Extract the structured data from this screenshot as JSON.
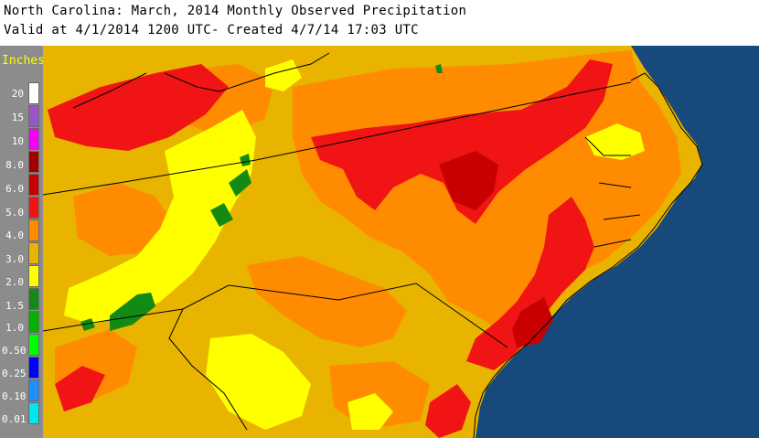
{
  "header": {
    "title_line1": "North Carolina: March, 2014 Monthly Observed Precipitation",
    "title_line2": "Valid at 4/1/2014 1200 UTC- Created 4/7/14 17:03 UTC"
  },
  "legend": {
    "title": "Inches",
    "items": [
      {
        "label": "20",
        "color": "#ffffff"
      },
      {
        "label": "15",
        "color": "#9955c9"
      },
      {
        "label": "10",
        "color": "#f700f7"
      },
      {
        "label": "8.0",
        "color": "#a00000"
      },
      {
        "label": "6.0",
        "color": "#c80000"
      },
      {
        "label": "5.0",
        "color": "#f01414"
      },
      {
        "label": "4.0",
        "color": "#ff8c00"
      },
      {
        "label": "3.0",
        "color": "#e8b400"
      },
      {
        "label": "2.0",
        "color": "#ffff00"
      },
      {
        "label": "1.5",
        "color": "#138a13"
      },
      {
        "label": "1.0",
        "color": "#00b400"
      },
      {
        "label": "0.50",
        "color": "#00ff00"
      },
      {
        "label": "0.25",
        "color": "#0000ff"
      },
      {
        "label": "0.10",
        "color": "#1e90ff"
      },
      {
        "label": "0.01",
        "color": "#00e5ee"
      }
    ]
  },
  "map": {
    "ocean_color": "#174a7a",
    "land_color": "#e8b400",
    "boundary_color": "#000000"
  }
}
